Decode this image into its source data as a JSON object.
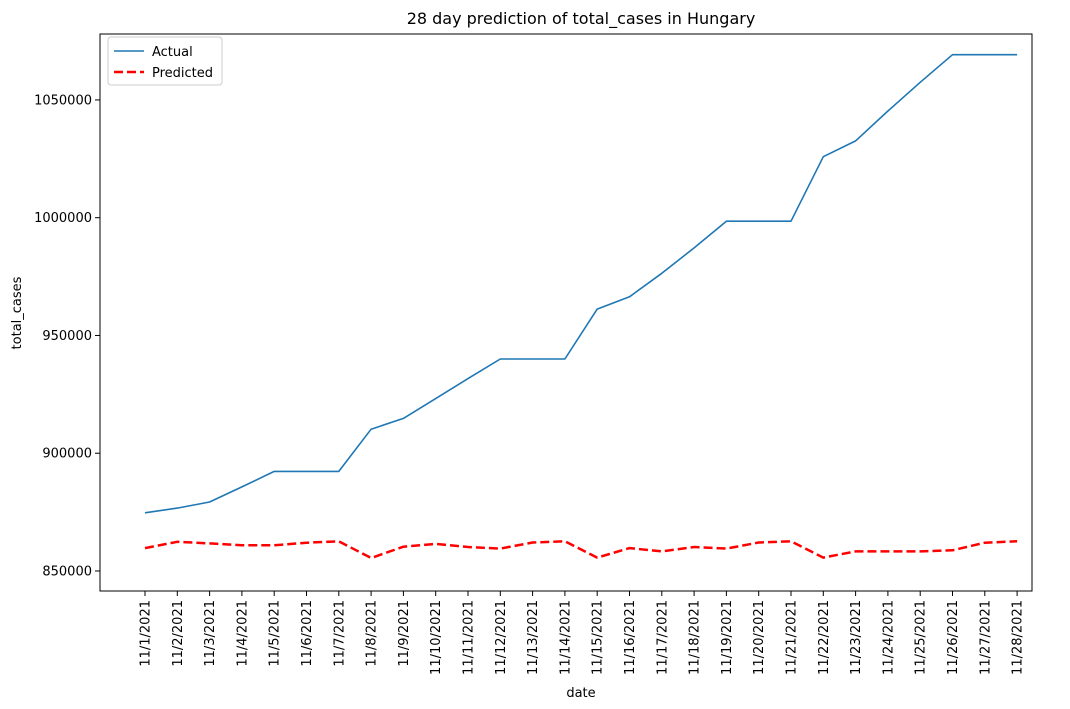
{
  "chart_data": {
    "type": "line",
    "title": "28 day prediction of total_cases in Hungary",
    "xlabel": "date",
    "ylabel": "total_cases",
    "ylim": [
      841500,
      1078000
    ],
    "yticks": [
      850000,
      900000,
      950000,
      1000000,
      1050000
    ],
    "ytick_labels": [
      "850000",
      "900000",
      "950000",
      "1000000",
      "1050000"
    ],
    "categories": [
      "11/1/2021",
      "11/2/2021",
      "11/3/2021",
      "11/4/2021",
      "11/5/2021",
      "11/6/2021",
      "11/7/2021",
      "11/8/2021",
      "11/9/2021",
      "11/10/2021",
      "11/11/2021",
      "11/12/2021",
      "11/13/2021",
      "11/14/2021",
      "11/15/2021",
      "11/16/2021",
      "11/17/2021",
      "11/18/2021",
      "11/19/2021",
      "11/20/2021",
      "11/21/2021",
      "11/22/2021",
      "11/23/2021",
      "11/24/2021",
      "11/25/2021",
      "11/26/2021",
      "11/27/2021",
      "11/28/2021"
    ],
    "legend_position": "top-left",
    "grid": false,
    "series": [
      {
        "name": "Actual",
        "color": "#1f77b4",
        "style": "solid",
        "values": [
          874700,
          876700,
          879300,
          885700,
          892300,
          892300,
          892300,
          910200,
          914800,
          923200,
          931700,
          940000,
          940000,
          940000,
          961200,
          966400,
          976400,
          987200,
          998500,
          998500,
          998500,
          1025900,
          1032600,
          1045300,
          1057500,
          1069200,
          1069200,
          1069200
        ]
      },
      {
        "name": "Predicted",
        "color": "#ff0000",
        "style": "dashed",
        "values": [
          859700,
          862400,
          861700,
          860900,
          860900,
          862000,
          862600,
          855500,
          860300,
          861500,
          860200,
          859500,
          862100,
          862600,
          855700,
          859700,
          858300,
          860200,
          859500,
          862100,
          862600,
          855700,
          858300,
          858300,
          858300,
          858800,
          862000,
          862600
        ]
      }
    ]
  }
}
